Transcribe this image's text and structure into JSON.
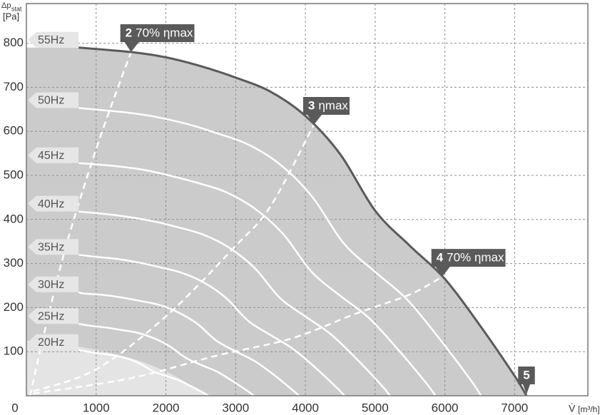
{
  "chart_data": {
    "type": "line",
    "xlabel": {
      "symbol": "V̇",
      "unit": "[m³/h]"
    },
    "ylabel": {
      "symbol": "Δp",
      "subscript": "stat",
      "unit": "[Pa]"
    },
    "xlim": [
      0,
      8050
    ],
    "ylim": [
      0,
      890
    ],
    "xticks": [
      0,
      1000,
      2000,
      3000,
      4000,
      5000,
      6000,
      7000
    ],
    "yticks": [
      100,
      200,
      300,
      400,
      500,
      600,
      700,
      800
    ],
    "grid": true,
    "area_color": "#cbcbcb",
    "series": [
      {
        "name": "55Hz",
        "color": "#5a5a5a",
        "end_label": "5",
        "x": [
          750,
          1500,
          2000,
          2500,
          3000,
          3500,
          4000,
          4500,
          5000,
          5500,
          6000,
          6500,
          7000,
          7170
        ],
        "y": [
          790,
          780,
          768,
          748,
          722,
          690,
          635,
          548,
          420,
          340,
          265,
          160,
          45,
          0
        ]
      },
      {
        "name": "50Hz",
        "color": "#ffffff",
        "x": [
          750,
          1364,
          1818,
          2273,
          2727,
          3182,
          3636,
          4091,
          4545,
          5000,
          5455,
          5909,
          6364,
          6518
        ],
        "y": [
          653,
          644,
          634,
          618,
          596,
          570,
          525,
          453,
          347,
          281,
          219,
          132,
          37,
          0
        ]
      },
      {
        "name": "45Hz",
        "color": "#ffffff",
        "x": [
          750,
          1227,
          1636,
          2045,
          2454,
          2863,
          3272,
          3681,
          4090,
          4499,
          4908,
          5317,
          5726,
          5865
        ],
        "y": [
          528,
          522,
          514,
          500,
          483,
          462,
          425,
          367,
          281,
          227,
          177,
          107,
          30,
          0
        ]
      },
      {
        "name": "40Hz",
        "color": "#ffffff",
        "x": [
          750,
          1091,
          1454,
          1818,
          2181,
          2545,
          2908,
          3272,
          3635,
          3999,
          4362,
          4726,
          5090,
          5213
        ],
        "y": [
          418,
          413,
          406,
          396,
          382,
          365,
          336,
          290,
          222,
          180,
          140,
          85,
          24,
          0
        ]
      },
      {
        "name": "35Hz",
        "color": "#ffffff",
        "x": [
          750,
          954,
          1272,
          1590,
          1908,
          2226,
          2544,
          2862,
          3180,
          3498,
          3816,
          4134,
          4452,
          4560
        ],
        "y": [
          320,
          316,
          311,
          303,
          292,
          279,
          257,
          222,
          170,
          138,
          107,
          65,
          18,
          0
        ]
      },
      {
        "name": "30Hz",
        "color": "#ffffff",
        "x": [
          750,
          818,
          1090,
          1363,
          1635,
          1908,
          2180,
          2453,
          2725,
          2998,
          3270,
          3543,
          3815,
          3908
        ],
        "y": [
          235,
          232,
          229,
          223,
          215,
          206,
          189,
          163,
          125,
          101,
          79,
          48,
          13,
          0
        ]
      },
      {
        "name": "25Hz",
        "color": "#ffffff",
        "x": [
          750,
          910,
          1138,
          1365,
          1593,
          1820,
          2048,
          2275,
          2503,
          2730,
          2958,
          3185,
          3262
        ],
        "y": [
          163,
          159,
          155,
          149,
          143,
          131,
          113,
          87,
          70,
          55,
          33,
          9,
          0
        ]
      },
      {
        "name": "20Hz",
        "color": "#ffffff",
        "x": [
          750,
          910,
          1092,
          1274,
          1456,
          1638,
          1820,
          2002,
          2184,
          2366,
          2548,
          2610
        ],
        "y": [
          104,
          99,
          95,
          91,
          84,
          72,
          55,
          45,
          35,
          21,
          6,
          0
        ]
      }
    ],
    "region": {
      "color": "#e4e4e4",
      "x": [
        0,
        800,
        1500,
        2000,
        2400,
        2600
      ],
      "y": [
        125,
        110,
        85,
        55,
        20,
        0
      ]
    },
    "efficiency_lines": [
      {
        "number": "2",
        "label": "70% ηmax",
        "color": "#ffffff",
        "x": [
          50,
          500,
          1000,
          1500
        ],
        "y": [
          0,
          300,
          560,
          780
        ]
      },
      {
        "number": "3",
        "label": "ηmax",
        "color": "#ffffff",
        "x": [
          100,
          1000,
          2000,
          3000,
          3500,
          4121
        ],
        "y": [
          10,
          60,
          180,
          340,
          430,
          615
        ]
      },
      {
        "number": "4",
        "label": "70% ηmax",
        "color": "#ffffff",
        "x": [
          100,
          1500,
          2700,
          3800,
          4700,
          5500,
          5960
        ],
        "y": [
          5,
          40,
          90,
          130,
          185,
          230,
          270
        ]
      }
    ]
  }
}
